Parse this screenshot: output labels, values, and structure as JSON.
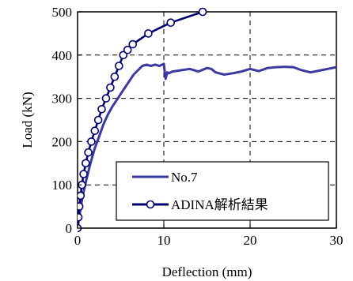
{
  "chart_data": {
    "type": "line",
    "title": "",
    "xlabel": "Deflection (mm)",
    "ylabel": "Load (kN)",
    "xlim": [
      0,
      30
    ],
    "ylim": [
      0,
      500
    ],
    "xticks": [
      "0",
      "10",
      "20",
      "30"
    ],
    "yticks": [
      "0",
      "100",
      "200",
      "300",
      "400",
      "500"
    ],
    "grid": "dashed",
    "legend_position": "bottom-right",
    "series": [
      {
        "name": "No.7",
        "color": "#3a3aa0",
        "marker": "none",
        "x": [
          0,
          0.3,
          0.6,
          1,
          1.5,
          2,
          2.5,
          3,
          3.5,
          4,
          4.5,
          5,
          5.5,
          6,
          6.5,
          7,
          7.5,
          8,
          8.5,
          9,
          9.5,
          10,
          10.2,
          10.4,
          10.6,
          11,
          12,
          13,
          14,
          15,
          15.5,
          16,
          17,
          18,
          19,
          20,
          21,
          22,
          23,
          24,
          25,
          26,
          27,
          28,
          29,
          30
        ],
        "y": [
          0,
          40,
          75,
          110,
          150,
          185,
          212,
          240,
          262,
          280,
          295,
          310,
          325,
          340,
          355,
          365,
          375,
          378,
          375,
          378,
          375,
          380,
          345,
          360,
          358,
          362,
          365,
          368,
          362,
          370,
          368,
          360,
          355,
          358,
          362,
          368,
          363,
          370,
          372,
          373,
          372,
          365,
          360,
          364,
          368,
          372
        ]
      },
      {
        "name": "ADINA解析結果",
        "color": "#00006e",
        "marker": "circle",
        "x": [
          0,
          0.1,
          0.2,
          0.35,
          0.5,
          0.7,
          0.95,
          1.25,
          1.6,
          2.0,
          2.4,
          2.8,
          3.3,
          3.8,
          4.3,
          4.8,
          5.3,
          5.8,
          6.4,
          8.2,
          10.8,
          14.5
        ],
        "y": [
          0,
          25,
          50,
          75,
          100,
          125,
          150,
          175,
          200,
          225,
          250,
          275,
          300,
          325,
          350,
          375,
          400,
          412,
          425,
          450,
          475,
          500
        ]
      }
    ]
  }
}
